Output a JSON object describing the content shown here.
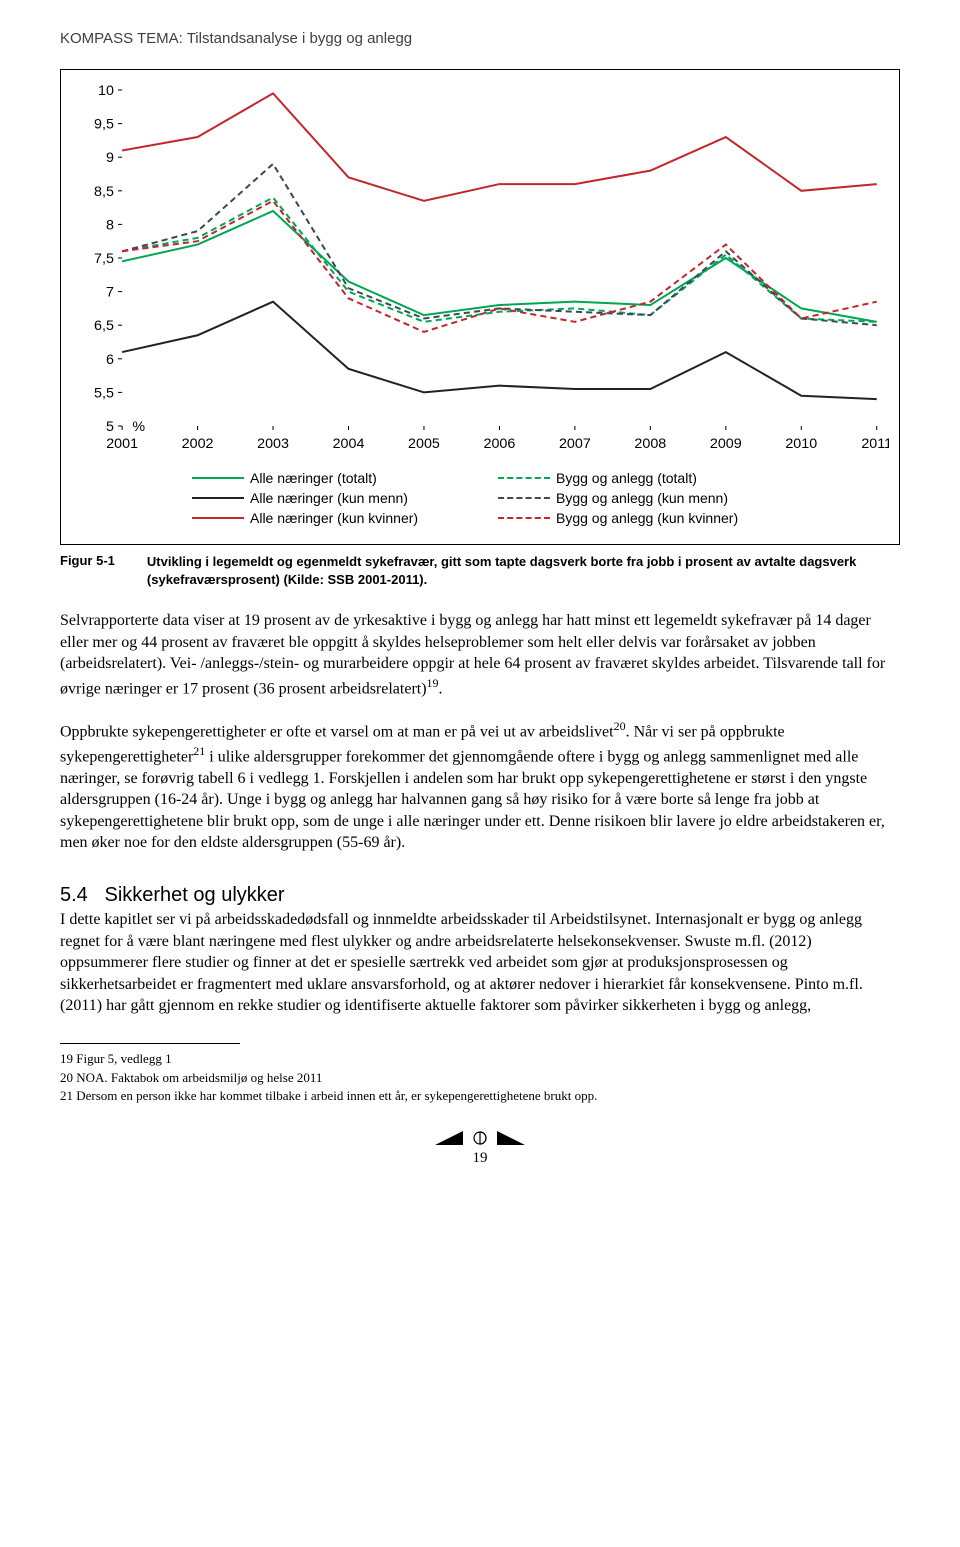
{
  "header": "KOMPASS TEMA: Tilstandsanalyse i bygg og anlegg",
  "chart": {
    "type": "line",
    "y": {
      "min": 5,
      "max": 10,
      "step": 0.5,
      "unit_label": "%"
    },
    "x_labels": [
      "2001",
      "2002",
      "2003",
      "2004",
      "2005",
      "2006",
      "2007",
      "2008",
      "2009",
      "2010",
      "2011"
    ],
    "background_color": "#ffffff",
    "axis_color": "#000000",
    "tick_fontsize": 14,
    "series": [
      {
        "name": "Alle næringer (totalt)",
        "color": "#00a651",
        "dash": "none",
        "width": 2,
        "values": [
          7.45,
          7.7,
          8.2,
          7.15,
          6.65,
          6.8,
          6.85,
          6.8,
          7.5,
          6.75,
          6.55
        ]
      },
      {
        "name": "Bygg og anlegg (totalt)",
        "color": "#00a651",
        "dash": "6 4",
        "width": 2,
        "values": [
          7.6,
          7.8,
          8.4,
          7.0,
          6.55,
          6.7,
          6.75,
          6.65,
          7.55,
          6.6,
          6.55
        ]
      },
      {
        "name": "Alle næringer (kun menn)",
        "color": "#222222",
        "dash": "none",
        "width": 2,
        "values": [
          6.1,
          6.35,
          6.85,
          5.85,
          5.5,
          5.6,
          5.55,
          5.55,
          6.1,
          5.45,
          5.4
        ]
      },
      {
        "name": "Bygg og anlegg (kun menn)",
        "color": "#3b4a5a",
        "dash": "6 4",
        "width": 2,
        "values": [
          7.6,
          7.9,
          8.9,
          7.05,
          6.6,
          6.75,
          6.7,
          6.65,
          7.6,
          6.6,
          6.5
        ]
      },
      {
        "name": "Alle næringer (kun kvinner)",
        "color": "#c1272d",
        "dash": "none",
        "width": 2,
        "values": [
          9.1,
          9.3,
          9.95,
          8.7,
          8.35,
          8.6,
          8.6,
          8.8,
          9.3,
          8.5,
          8.6
        ]
      },
      {
        "name": "Bygg og anlegg (kun kvinner)",
        "color": "#c1272d",
        "dash": "6 4",
        "width": 2,
        "values": [
          7.6,
          7.75,
          8.35,
          6.9,
          6.4,
          6.75,
          6.55,
          6.85,
          7.7,
          6.6,
          6.85
        ]
      }
    ],
    "legend_order": [
      [
        0,
        1
      ],
      [
        2,
        3
      ],
      [
        4,
        5
      ]
    ]
  },
  "figure": {
    "label": "Figur 5-1",
    "text": "Utvikling i legemeldt og egenmeldt sykefravær, gitt som tapte dagsverk borte fra jobb i prosent av avtalte dagsverk (sykefraværsprosent) (Kilde: SSB 2001-2011)."
  },
  "paragraphs": {
    "p1": "Selvrapporterte data viser at 19 prosent av de yrkesaktive i bygg og anlegg har hatt minst ett legemeldt sykefravær på 14 dager eller mer og 44 prosent av fraværet ble oppgitt å skyldes helseproblemer som helt eller delvis var forårsaket av jobben (arbeidsrelatert). Vei- /anleggs-/stein- og murarbeidere oppgir at hele 64 prosent av fraværet skyldes arbeidet. Tilsvarende tall for øvrige næringer er 17 prosent (36 prosent arbeidsrelatert)",
    "p1_super": "19",
    "p1_tail": ".",
    "p2a": "Oppbrukte sykepengerettigheter er ofte et varsel om at man er på vei ut av arbeidslivet",
    "p2a_super": "20",
    "p2b": ". Når vi ser på oppbrukte sykepengerettigheter",
    "p2b_super": "21",
    "p2c": " i ulike aldersgrupper forekommer det gjennomgående oftere i bygg og anlegg sammenlignet med alle næringer, se forøvrig tabell 6 i vedlegg 1. Forskjellen i andelen som har brukt opp sykepengerettighetene er størst i den yngste aldersgruppen (16-24 år). Unge i bygg og anlegg har halvannen gang så høy risiko for å være borte så lenge fra jobb at sykepengerettighetene blir brukt opp, som de unge i alle næringer under ett. Denne risikoen blir lavere jo eldre arbeidstakeren er, men øker noe for den eldste aldersgruppen (55-69 år)."
  },
  "section": {
    "number": "5.4",
    "title": "Sikkerhet og ulykker",
    "p": "I dette kapitlet ser vi på arbeidsskadedødsfall og innmeldte arbeidsskader til Arbeidstilsynet. Internasjonalt er bygg og anlegg regnet for å være blant næringene med flest ulykker og andre arbeidsrelaterte helsekonsekvenser. Swuste m.fl. (2012) oppsummerer flere studier og finner at det er spesielle særtrekk ved arbeidet som gjør at produksjonsprosessen og sikkerhetsarbeidet er fragmentert med uklare ansvarsforhold, og at aktører nedover i hierarkiet får konsekvensene. Pinto m.fl. (2011) har gått gjennom en rekke studier og identifiserte aktuelle faktorer som påvirker sikkerheten i bygg og anlegg,"
  },
  "footnotes": {
    "f19": "19 Figur 5, vedlegg 1",
    "f20": "20 NOA. Faktabok om arbeidsmiljø og helse 2011",
    "f21": "21 Dersom en person ikke har kommet tilbake i arbeid innen ett år, er sykepengerettighetene brukt opp."
  },
  "page_number": "19"
}
